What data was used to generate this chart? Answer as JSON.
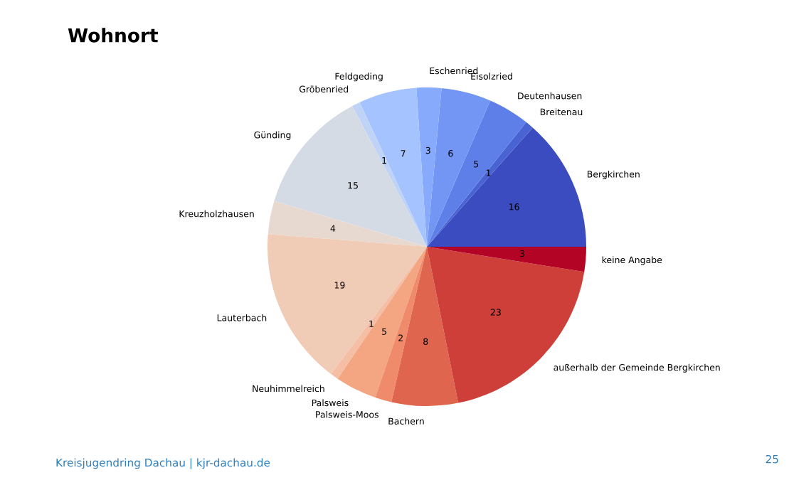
{
  "chart_data": {
    "type": "pie",
    "title": "Wohnort",
    "categories": [
      "Bergkirchen",
      "Breitenau",
      "Deutenhausen",
      "Eisolzried",
      "Eschenried",
      "Feldgeding",
      "Gröbenried",
      "Günding",
      "Kreuzholzhausen",
      "Lauterbach",
      "Neuhimmelreich",
      "Palsweis",
      "Palsweis-Moos",
      "Bachern",
      "außerhalb der Gemeinde Bergkirchen",
      "keine Angabe"
    ],
    "values": [
      16,
      1,
      5,
      6,
      3,
      7,
      1,
      15,
      4,
      19,
      1,
      5,
      2,
      8,
      23,
      3
    ],
    "colors": [
      "#3b4cc0",
      "#4a63d3",
      "#5f7fe8",
      "#7396f5",
      "#87aafc",
      "#a5c3fe",
      "#bfd3f6",
      "#d5dbe5",
      "#e8d9d0",
      "#f0cbb6",
      "#f5bfa6",
      "#f4a582",
      "#ef8a6a",
      "#e0654f",
      "#cd3f38",
      "#b40426"
    ],
    "data_labels": true,
    "annotations": [
      "Kreisjugendring Dachau | kjr-dachau.de",
      "25"
    ]
  }
}
